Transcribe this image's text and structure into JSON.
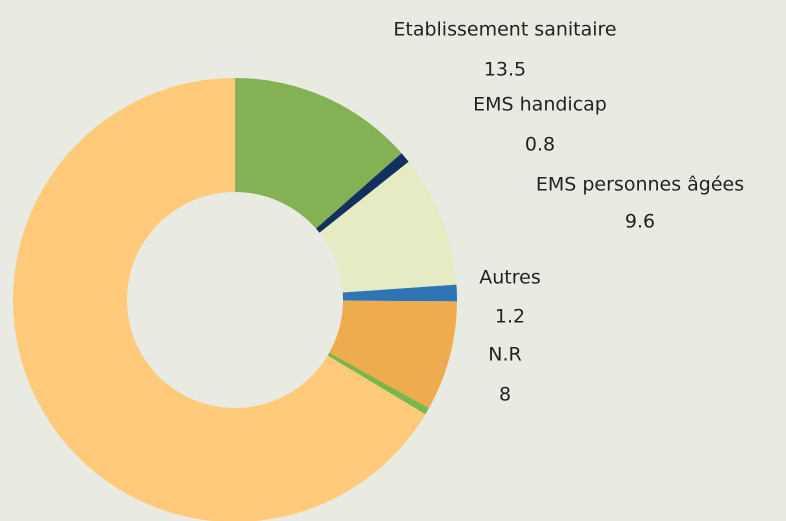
{
  "chart_data": {
    "type": "donut",
    "categories": [
      "Etablissement sanitaire",
      "EMS handicap",
      "EMS personnes âgées",
      "Autres",
      "N.R",
      null,
      null
    ],
    "values": [
      13.5,
      0.8,
      9.6,
      1.2,
      8,
      0.5,
      66.4
    ],
    "colors": [
      "#84b153",
      "#12305e",
      "#e6ebc4",
      "#2e75b6",
      "#eeac4e",
      "#7ab648",
      "#ffca7a"
    ]
  }
}
